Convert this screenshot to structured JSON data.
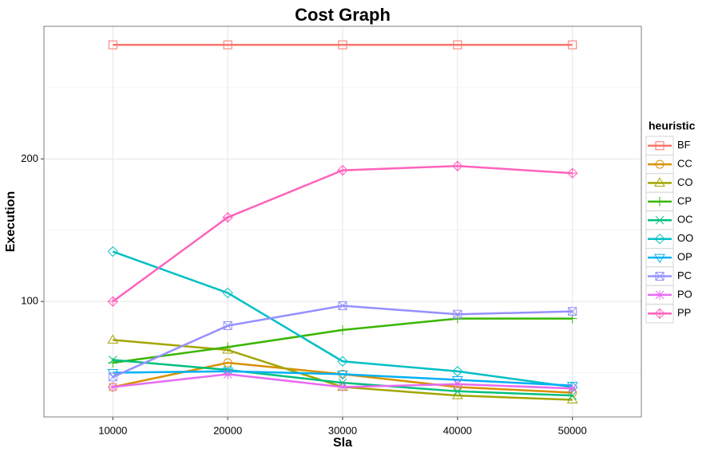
{
  "chart_data": {
    "type": "line",
    "title": "Cost Graph",
    "x_label": "Sla",
    "y_label": "Execution",
    "x": [
      10000,
      20000,
      30000,
      40000,
      50000
    ],
    "xlim": [
      4000,
      56000
    ],
    "xticks": [
      10000,
      20000,
      30000,
      40000,
      50000
    ],
    "ylim": [
      19,
      293
    ],
    "yticks": [
      100,
      200
    ],
    "y_minor_grid": [
      50,
      150,
      250
    ],
    "grid": true,
    "legend_title": "heuristic",
    "legend_position": "right",
    "series": [
      {
        "name": "BF",
        "color": "#F8766D",
        "marker": "square",
        "values": [
          280,
          280,
          280,
          280,
          280
        ]
      },
      {
        "name": "CC",
        "color": "#D89000",
        "marker": "circle",
        "values": [
          40,
          57,
          49,
          40,
          36
        ]
      },
      {
        "name": "CO",
        "color": "#A3A500",
        "marker": "triangle",
        "values": [
          73,
          66,
          40,
          34,
          31
        ]
      },
      {
        "name": "CP",
        "color": "#39B600",
        "marker": "plus",
        "values": [
          57,
          68,
          80,
          88,
          88
        ]
      },
      {
        "name": "OC",
        "color": "#00BF7D",
        "marker": "cross",
        "values": [
          59,
          52,
          43,
          37,
          34
        ]
      },
      {
        "name": "OO",
        "color": "#00BFC4",
        "marker": "diamond",
        "values": [
          135,
          106,
          58,
          51,
          40
        ]
      },
      {
        "name": "OP",
        "color": "#00B0F6",
        "marker": "triangle-down",
        "values": [
          50,
          51,
          49,
          45,
          41
        ]
      },
      {
        "name": "PC",
        "color": "#9590FF",
        "marker": "square-cross",
        "values": [
          47,
          83,
          97,
          91,
          93
        ]
      },
      {
        "name": "PO",
        "color": "#E76BF3",
        "marker": "star",
        "values": [
          40,
          49,
          40,
          42,
          39
        ]
      },
      {
        "name": "PP",
        "color": "#FF62BC",
        "marker": "diamond-plus",
        "values": [
          100,
          159,
          192,
          195,
          190
        ]
      }
    ]
  }
}
